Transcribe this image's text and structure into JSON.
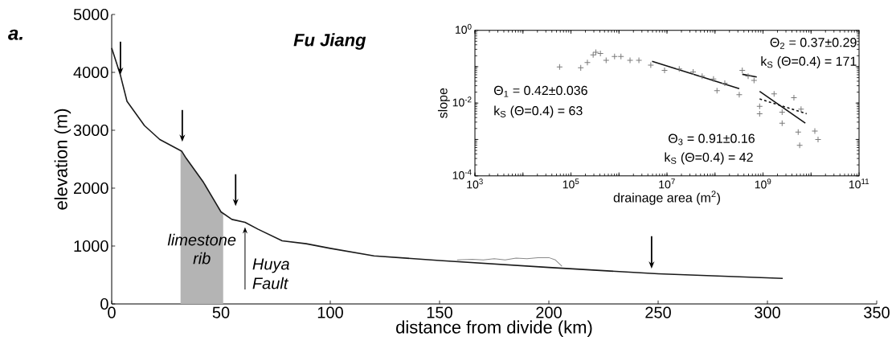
{
  "chart_data": [
    {
      "type": "line",
      "title": "Fu Jiang",
      "xlabel": "distance from divide (km)",
      "ylabel": "elevation (m)",
      "xlim": [
        0,
        350
      ],
      "ylim": [
        0,
        5000
      ],
      "xticks": [
        0,
        50,
        100,
        150,
        200,
        250,
        300,
        350
      ],
      "yticks": [
        0,
        1000,
        2000,
        3000,
        4000,
        5000
      ],
      "series": [
        {
          "color": "#1a1a1a",
          "x": [
            0,
            4,
            7,
            15,
            22,
            32,
            34,
            42,
            50,
            55,
            61,
            67,
            78,
            89,
            100,
            120,
            150,
            200,
            250,
            307
          ],
          "values": [
            4420,
            3950,
            3500,
            3080,
            2840,
            2640,
            2520,
            2100,
            1590,
            1460,
            1410,
            1290,
            1090,
            1040,
            960,
            830,
            750,
            630,
            520,
            440
          ]
        },
        {
          "color": "#8a8a8a",
          "x": [
            158,
            165,
            170,
            175,
            180,
            185,
            190,
            195,
            200,
            203,
            206
          ],
          "values": [
            760,
            770,
            760,
            780,
            760,
            790,
            780,
            800,
            800,
            760,
            650
          ]
        }
      ],
      "bands": [
        {
          "axis": "x",
          "from": 31.5,
          "to": 51,
          "label": "limestone rib",
          "color": "#b4b4b4"
        }
      ],
      "annotations": [
        "a.",
        {
          "text": "Huya Fault",
          "x": 61,
          "y": 1410
        }
      ]
    },
    {
      "type": "scatter",
      "xlabel": "drainage area (m$^{2}$)",
      "ylabel": "slope",
      "log": "xy",
      "xlim": [
        1000,
        100000000000
      ],
      "ylim": [
        0.0001,
        1
      ],
      "xticks": [
        {
          "value": 1000,
          "label": "10$^{3}$"
        },
        {
          "value": 10000,
          "label": null
        },
        {
          "value": 100000,
          "label": "10$^{5}$"
        },
        {
          "value": 1000000,
          "label": null
        },
        {
          "value": 10000000,
          "label": "10$^{7}$"
        },
        {
          "value": 100000000,
          "label": null
        },
        {
          "value": 1000000000,
          "label": "10$^{9}$"
        },
        {
          "value": 10000000000,
          "label": null
        },
        {
          "value": 100000000000,
          "label": "10$^{11}$"
        }
      ],
      "yticks": [
        {
          "value": 0.0001,
          "label": "10$^{-4}$"
        },
        {
          "value": 0.001,
          "label": null
        },
        {
          "value": 0.01,
          "label": "10$^{-2}$"
        },
        {
          "value": 0.1,
          "label": null
        },
        {
          "value": 1,
          "label": "10$^{0}$"
        }
      ],
      "series": [
        {
          "color": "#7a7a7a",
          "marker": "cross",
          "x": [
            58000.0,
            160000.0,
            220000.0,
            290000.0,
            330000.0,
            410000.0,
            540000.0,
            810000.0,
            1100000.0,
            1700000.0,
            2600000.0,
            4600000.0,
            8900000.0,
            18000000.0,
            35000000.0,
            54000000.0,
            93000000.0,
            110000000.0,
            160000000.0,
            320000000.0,
            370000000.0,
            490000000.0,
            650000000.0,
            850000000.0,
            850000000.0,
            1700000000.0,
            2500000000.0,
            2500000000.0,
            4400000000.0,
            5400000000.0,
            5800000000.0,
            6200000000.0,
            12000000000.0,
            14000000000.0
          ],
          "values": [
            0.098,
            0.093,
            0.13,
            0.21,
            0.25,
            0.23,
            0.15,
            0.19,
            0.19,
            0.15,
            0.15,
            0.11,
            0.079,
            0.087,
            0.072,
            0.055,
            0.046,
            0.022,
            0.035,
            0.017,
            0.079,
            0.055,
            0.042,
            0.0081,
            0.0051,
            0.018,
            0.0056,
            0.0028,
            0.014,
            0.0016,
            0.00069,
            0.0068,
            0.0017,
            0.001
          ]
        },
        {
          "type": "line",
          "color": "#111111",
          "x": [
            4900000.0,
            320000000.0
          ],
          "values": [
            0.14,
            0.025
          ]
        },
        {
          "type": "line",
          "color": "#111111",
          "x": [
            370000000.0,
            740000000.0
          ],
          "values": [
            0.062,
            0.052
          ]
        },
        {
          "type": "line",
          "color": "#111111",
          "x": [
            850000000.0,
            7600000000.0
          ],
          "values": [
            0.021,
            0.0028
          ]
        },
        {
          "type": "line",
          "color": "#111111",
          "line_style": "dashed",
          "x": [
            850000000.0,
            8100000000.0
          ],
          "values": [
            0.013,
            0.0051
          ]
        }
      ],
      "annotations": [
        "Θ$_{1}$ = 0.42±0.036",
        "k$_{S}$ (Θ=0.4) = 63",
        "Θ$_{2}$ = 0.37±0.29",
        "k$_{S}$ (Θ=0.4) = 171",
        "Θ$_{3}$ = 0.91±0.16",
        "k$_{S}$ (Θ=0.4) = 42"
      ]
    }
  ]
}
